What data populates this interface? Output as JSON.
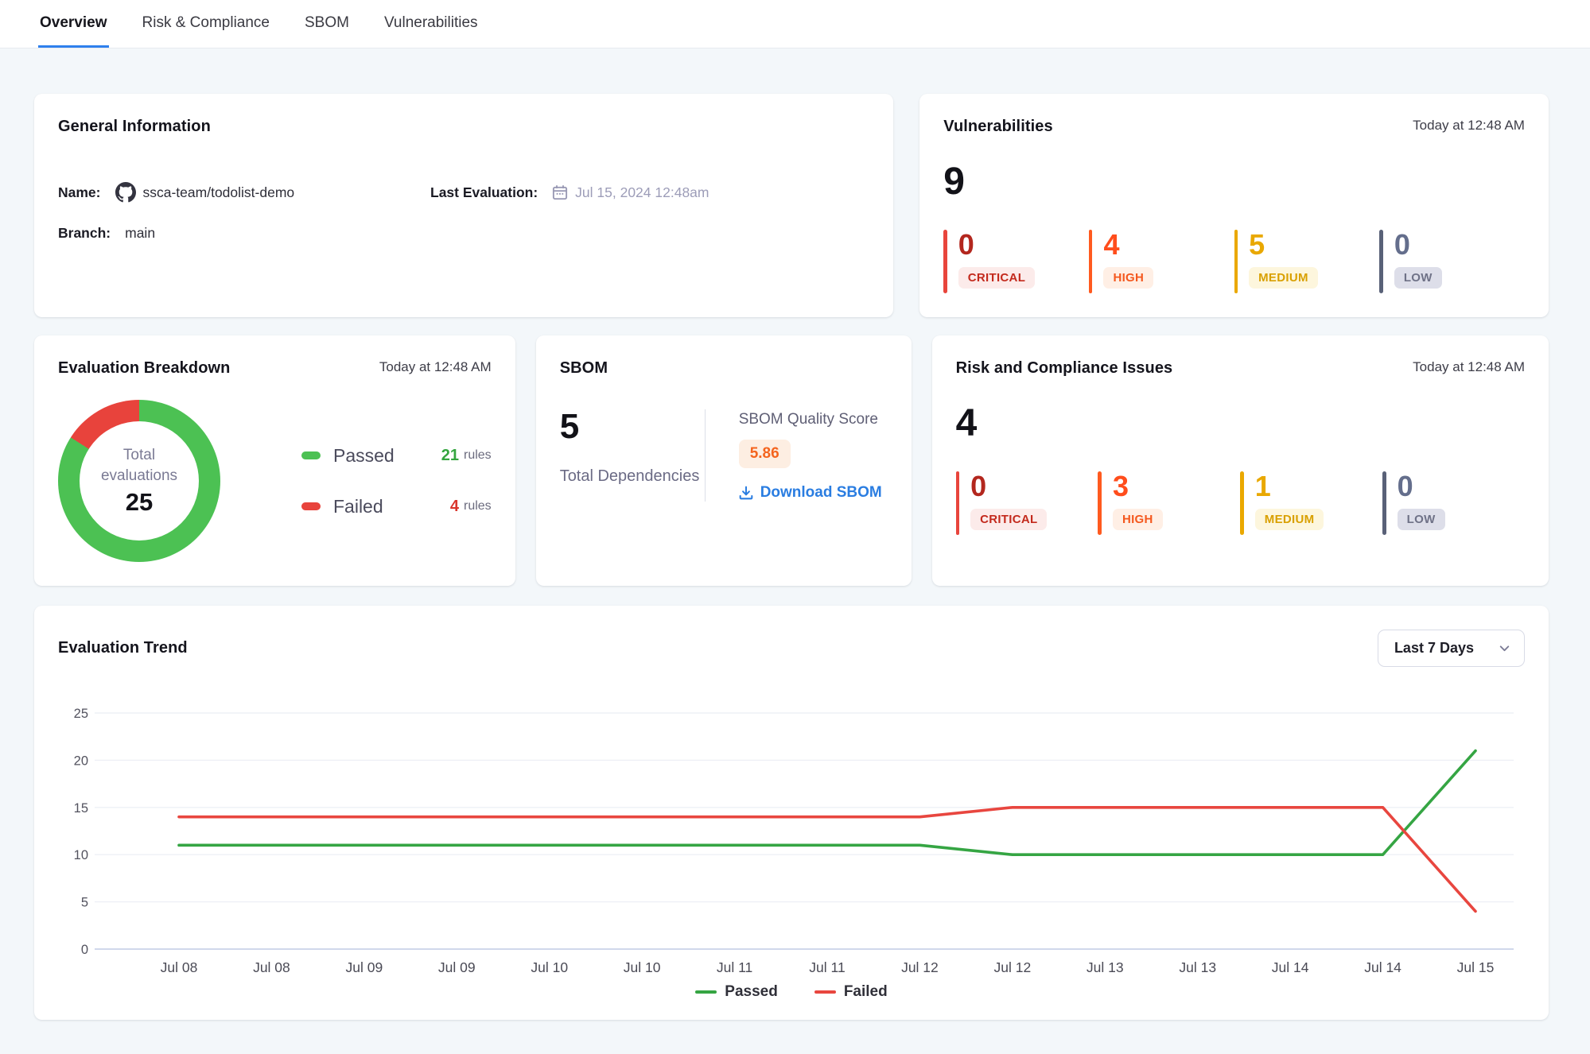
{
  "tabs": {
    "active_index": 0,
    "items": [
      {
        "label": "Overview"
      },
      {
        "label": "Risk & Compliance"
      },
      {
        "label": "SBOM"
      },
      {
        "label": "Vulnerabilities"
      }
    ]
  },
  "general_information": {
    "title": "General Information",
    "name_label": "Name:",
    "name_value": "ssca-team/todolist-demo",
    "branch_label": "Branch:",
    "branch_value": "main",
    "last_evaluation_label": "Last Evaluation:",
    "last_evaluation_value": "Jul 15, 2024 12:48am"
  },
  "vulnerabilities": {
    "title": "Vulnerabilities",
    "timestamp": "Today at 12:48 AM",
    "total": "9",
    "severities": [
      {
        "label": "CRITICAL",
        "count": "0",
        "text_color": "#b3271e",
        "bar_color": "#e8453c",
        "badge_bg": "#fcebea",
        "badge_text": "#c32a1d"
      },
      {
        "label": "HIGH",
        "count": "4",
        "text_color": "#ff4d1c",
        "bar_color": "#ff5a1f",
        "badge_bg": "#ffefe5",
        "badge_text": "#f4581e"
      },
      {
        "label": "MEDIUM",
        "count": "5",
        "text_color": "#e9a800",
        "bar_color": "#eaa800",
        "badge_bg": "#fdf6dd",
        "badge_text": "#d9a000"
      },
      {
        "label": "LOW",
        "count": "0",
        "text_color": "#646e8c",
        "bar_color": "#596178",
        "badge_bg": "#dddee9",
        "badge_text": "#6f7287"
      }
    ]
  },
  "evaluation_breakdown": {
    "title": "Evaluation Breakdown",
    "timestamp": "Today at 12:48 AM",
    "donut_center_label": "Total evaluations",
    "total": "25",
    "legend": [
      {
        "label": "Passed",
        "value": "21",
        "unit": "rules",
        "color": "#4cc153",
        "value_color": "#35a53f"
      },
      {
        "label": "Failed",
        "value": "4",
        "unit": "rules",
        "color": "#e8433c",
        "value_color": "#d9352c"
      }
    ]
  },
  "sbom": {
    "title": "SBOM",
    "total": "5",
    "total_label": "Total Dependencies",
    "quality_label": "SBOM Quality Score",
    "quality_score": "5.86",
    "quality_score_color": "#f4641e",
    "quality_score_bg": "#fdeee2",
    "download_label": "Download SBOM",
    "download_color": "#2a7de1"
  },
  "risk_compliance": {
    "title": "Risk and Compliance Issues",
    "timestamp": "Today at 12:48 AM",
    "total": "4",
    "severities": [
      {
        "label": "CRITICAL",
        "count": "0",
        "text_color": "#b3271e",
        "bar_color": "#e8453c",
        "badge_bg": "#fcebea",
        "badge_text": "#c32a1d"
      },
      {
        "label": "HIGH",
        "count": "3",
        "text_color": "#ff4d1c",
        "bar_color": "#ff5a1f",
        "badge_bg": "#ffefe5",
        "badge_text": "#f4581e"
      },
      {
        "label": "MEDIUM",
        "count": "1",
        "text_color": "#e9a800",
        "bar_color": "#eaa800",
        "badge_bg": "#fdf6dd",
        "badge_text": "#d9a000"
      },
      {
        "label": "LOW",
        "count": "0",
        "text_color": "#646e8c",
        "bar_color": "#596178",
        "badge_bg": "#dddee9",
        "badge_text": "#6f7287"
      }
    ]
  },
  "evaluation_trend": {
    "title": "Evaluation Trend",
    "range_selector": "Last 7 Days"
  },
  "icons": {
    "repo": "github-icon",
    "last_evaluation": "calendar-icon",
    "download": "download-icon",
    "range_selector": "chevron-down-icon"
  },
  "colors": {
    "accent_blue": "#2f80ed",
    "page_background": "#f3f7fa",
    "card_background": "#ffffff",
    "passed_green": "#35a543",
    "failed_red": "#e8463f"
  },
  "chart_data": [
    {
      "type": "pie",
      "subtype": "donut",
      "title": "Evaluation Breakdown",
      "labels": [
        "Passed",
        "Failed"
      ],
      "values": [
        21,
        4
      ],
      "colors": [
        "#4cc153",
        "#e8433c"
      ],
      "center_label": "Total evaluations",
      "center_value": 25
    },
    {
      "type": "line",
      "title": "Evaluation Trend",
      "categories": [
        "Jul 08",
        "Jul 08",
        "Jul 09",
        "Jul 09",
        "Jul 10",
        "Jul 10",
        "Jul 11",
        "Jul 11",
        "Jul 12",
        "Jul 12",
        "Jul 13",
        "Jul 13",
        "Jul 14",
        "Jul 14",
        "Jul 15"
      ],
      "series": [
        {
          "name": "Passed",
          "color": "#35a543",
          "values": [
            11,
            11,
            11,
            11,
            11,
            11,
            11,
            11,
            11,
            10,
            10,
            10,
            10,
            10,
            21
          ]
        },
        {
          "name": "Failed",
          "color": "#e8463f",
          "values": [
            14,
            14,
            14,
            14,
            14,
            14,
            14,
            14,
            14,
            15,
            15,
            15,
            15,
            15,
            4
          ]
        }
      ],
      "xlabel": "",
      "ylabel": "",
      "ylim": [
        0,
        25
      ],
      "yticks": [
        0,
        5,
        10,
        15,
        20,
        25
      ],
      "grid": "horizontal",
      "legend_position": "bottom"
    }
  ]
}
